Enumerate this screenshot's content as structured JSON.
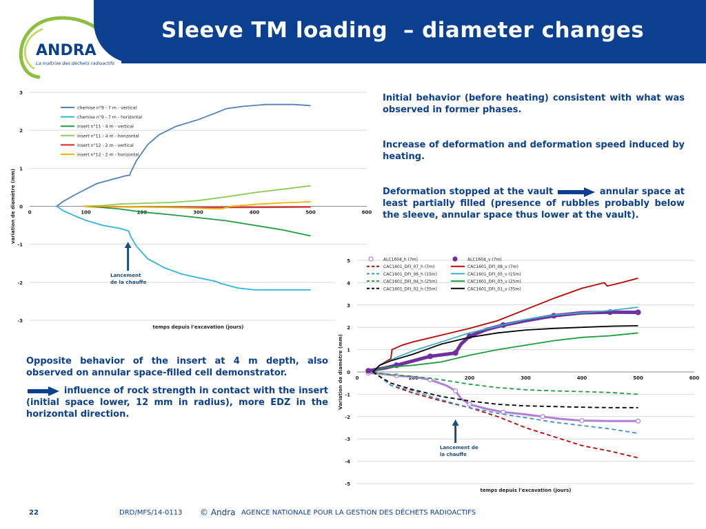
{
  "slide": {
    "title": "Sleeve TM loading  – diameter changes",
    "logo": {
      "brand": "ANDRA",
      "tagline": "La maîtrise des déchets radioactifs"
    },
    "paragraphs": {
      "p1": "Initial behavior (before heating) consistent with what was observed in former phases.",
      "p2": "Increase of deformation and deformation speed induced by heating.",
      "p3_a": "Deformation stopped at the vault",
      "p3_b": "annular space at least partially filled (presence of rubbles probably below the sleeve, annular space thus lower at the vault).",
      "p4": "Opposite behavior of the insert at 4 m depth, also observed on annular space-filled cell demonstrator.",
      "p5": "influence of rock strength in contact with the insert (initial space lower, 12 mm in radius), more EDZ in the horizontal direction."
    },
    "footer": {
      "page": "22",
      "ref": "DRD/MFS/14-0113",
      "copyright": "© Andra",
      "agency": "AGENCE NATIONALE POUR LA GESTION DES DÉCHETS RADIOACTIFS"
    },
    "colors": {
      "brand_blue": "#0b3f8f",
      "logo_green": "#8cbf3f"
    }
  },
  "chart_data": [
    {
      "type": "line",
      "xlabel": "temps depuis l'excavation (jours)",
      "ylabel": "variation de diamètre (mm)",
      "xlim": [
        0,
        600
      ],
      "ylim": [
        -3,
        3
      ],
      "xticks": [
        "0",
        "100",
        "200",
        "300",
        "400",
        "500",
        "600"
      ],
      "yticks": [
        "3",
        "2",
        "1",
        "0",
        "-1",
        "-2",
        "-3"
      ],
      "legend_position": "top-left",
      "annotation": {
        "line1": "Lancement",
        "line2": "de la chauffe",
        "x": 175
      },
      "series": [
        {
          "name": "chemise n°9 - 7 m - vertical",
          "color": "#4f81bd",
          "points": [
            [
              48,
              0
            ],
            [
              60,
              0.13
            ],
            [
              80,
              0.3
            ],
            [
              100,
              0.45
            ],
            [
              120,
              0.6
            ],
            [
              150,
              0.72
            ],
            [
              170,
              0.8
            ],
            [
              178,
              0.82
            ],
            [
              180,
              0.9
            ],
            [
              190,
              1.2
            ],
            [
              210,
              1.62
            ],
            [
              230,
              1.88
            ],
            [
              260,
              2.1
            ],
            [
              300,
              2.28
            ],
            [
              330,
              2.45
            ],
            [
              350,
              2.57
            ],
            [
              380,
              2.63
            ],
            [
              420,
              2.68
            ],
            [
              470,
              2.68
            ],
            [
              500,
              2.65
            ]
          ]
        },
        {
          "name": "chemise n°9 - 7 m - horizontal",
          "color": "#2db3e6",
          "points": [
            [
              48,
              0
            ],
            [
              60,
              -0.12
            ],
            [
              80,
              -0.25
            ],
            [
              100,
              -0.37
            ],
            [
              130,
              -0.5
            ],
            [
              160,
              -0.58
            ],
            [
              176,
              -0.65
            ],
            [
              180,
              -0.8
            ],
            [
              190,
              -1.05
            ],
            [
              210,
              -1.38
            ],
            [
              240,
              -1.62
            ],
            [
              270,
              -1.78
            ],
            [
              300,
              -1.88
            ],
            [
              330,
              -1.97
            ],
            [
              340,
              -2.03
            ],
            [
              370,
              -2.15
            ],
            [
              400,
              -2.2
            ],
            [
              450,
              -2.2
            ],
            [
              500,
              -2.2
            ]
          ]
        },
        {
          "name": "insert n°11 - 4 m - vertical",
          "color": "#1a9e3e",
          "points": [
            [
              95,
              0
            ],
            [
              120,
              -0.02
            ],
            [
              160,
              -0.07
            ],
            [
              200,
              -0.15
            ],
            [
              250,
              -0.22
            ],
            [
              300,
              -0.3
            ],
            [
              350,
              -0.38
            ],
            [
              400,
              -0.5
            ],
            [
              450,
              -0.62
            ],
            [
              500,
              -0.78
            ]
          ]
        },
        {
          "name": "insert n°11 - 4 m - horizontal",
          "color": "#8ccc52",
          "points": [
            [
              95,
              0
            ],
            [
              130,
              0.02
            ],
            [
              160,
              0.06
            ],
            [
              200,
              0.08
            ],
            [
              250,
              0.1
            ],
            [
              300,
              0.15
            ],
            [
              350,
              0.25
            ],
            [
              400,
              0.36
            ],
            [
              450,
              0.45
            ],
            [
              500,
              0.54
            ]
          ]
        },
        {
          "name": "insert n°12 - 2 m - vertical",
          "color": "#e02020",
          "points": [
            [
              95,
              0
            ],
            [
              200,
              -0.02
            ],
            [
              300,
              -0.03
            ],
            [
              400,
              -0.03
            ],
            [
              500,
              -0.02
            ]
          ]
        },
        {
          "name": "insert n°12 - 2 m - horizontal",
          "color": "#f0b400",
          "points": [
            [
              95,
              0
            ],
            [
              150,
              0
            ],
            [
              200,
              -0.02
            ],
            [
              250,
              -0.03
            ],
            [
              300,
              -0.05
            ],
            [
              340,
              -0.07
            ],
            [
              360,
              0
            ],
            [
              400,
              0.05
            ],
            [
              450,
              0.09
            ],
            [
              500,
              0.12
            ]
          ]
        }
      ]
    },
    {
      "type": "line",
      "xlabel": "temps depuis l'excavation (jours)",
      "ylabel": "Variation de diamètre (mm)",
      "xlim": [
        0,
        600
      ],
      "ylim": [
        -5,
        5
      ],
      "xticks": [
        "0",
        "100",
        "200",
        "300",
        "400",
        "500",
        "600"
      ],
      "yticks": [
        "5",
        "4",
        "3",
        "2",
        "1",
        "0",
        "-1",
        "-2",
        "-3",
        "-4",
        "-5"
      ],
      "legend_position": "top-left",
      "annotation": {
        "line1": "Lancement de",
        "line2": "la chauffe",
        "x": 175
      },
      "series": [
        {
          "name": "ALC1604_h (7m)",
          "color": "#b27fd6",
          "style": "open-circle",
          "points": [
            [
              20,
              -0.05
            ],
            [
              50,
              -0.1
            ],
            [
              70,
              -0.17
            ],
            [
              100,
              -0.22
            ],
            [
              130,
              -0.35
            ],
            [
              160,
              -0.62
            ],
            [
              175,
              -0.85
            ],
            [
              185,
              -1.2
            ],
            [
              200,
              -1.45
            ],
            [
              230,
              -1.65
            ],
            [
              260,
              -1.8
            ],
            [
              300,
              -1.9
            ],
            [
              330,
              -2.0
            ],
            [
              360,
              -2.1
            ],
            [
              400,
              -2.18
            ],
            [
              450,
              -2.2
            ],
            [
              500,
              -2.2
            ]
          ]
        },
        {
          "name": "ALC1604_v (7m)",
          "color": "#7030a0",
          "style": "filled-circle",
          "points": [
            [
              20,
              0.05
            ],
            [
              50,
              0.18
            ],
            [
              70,
              0.3
            ],
            [
              100,
              0.5
            ],
            [
              130,
              0.7
            ],
            [
              160,
              0.8
            ],
            [
              175,
              0.85
            ],
            [
              185,
              1.25
            ],
            [
              200,
              1.6
            ],
            [
              230,
              1.9
            ],
            [
              260,
              2.1
            ],
            [
              300,
              2.3
            ],
            [
              350,
              2.52
            ],
            [
              400,
              2.65
            ],
            [
              450,
              2.68
            ],
            [
              500,
              2.67
            ]
          ]
        },
        {
          "name": "CAC1601_DFI_07_h (7m)",
          "color": "#c00000",
          "style": "dash",
          "points": [
            [
              28,
              0
            ],
            [
              40,
              -0.2
            ],
            [
              60,
              -0.6
            ],
            [
              100,
              -0.95
            ],
            [
              150,
              -1.3
            ],
            [
              200,
              -1.6
            ],
            [
              250,
              -2.0
            ],
            [
              300,
              -2.5
            ],
            [
              350,
              -2.9
            ],
            [
              400,
              -3.3
            ],
            [
              450,
              -3.55
            ],
            [
              500,
              -3.85
            ]
          ]
        },
        {
          "name": "CAC1601_DFI_08_v (7m)",
          "color": "#c00000",
          "style": "solid",
          "points": [
            [
              28,
              0
            ],
            [
              40,
              0.3
            ],
            [
              60,
              0.6
            ],
            [
              62,
              1.0
            ],
            [
              80,
              1.2
            ],
            [
              100,
              1.35
            ],
            [
              150,
              1.65
            ],
            [
              200,
              1.95
            ],
            [
              250,
              2.3
            ],
            [
              300,
              2.8
            ],
            [
              350,
              3.3
            ],
            [
              400,
              3.75
            ],
            [
              440,
              4.0
            ],
            [
              445,
              3.85
            ],
            [
              470,
              4.0
            ],
            [
              500,
              4.2
            ]
          ]
        },
        {
          "name": "CAC1601_DFI_06_h (15m)",
          "color": "#3a92c8",
          "style": "dash",
          "points": [
            [
              28,
              0
            ],
            [
              40,
              -0.2
            ],
            [
              60,
              -0.6
            ],
            [
              100,
              -0.85
            ],
            [
              150,
              -1.25
            ],
            [
              200,
              -1.6
            ],
            [
              250,
              -1.85
            ],
            [
              300,
              -2.05
            ],
            [
              350,
              -2.25
            ],
            [
              400,
              -2.4
            ],
            [
              450,
              -2.55
            ],
            [
              500,
              -2.75
            ]
          ]
        },
        {
          "name": "CAC1601_DFI_05_v (15m)",
          "color": "#3ab0c8",
          "style": "solid",
          "points": [
            [
              28,
              0
            ],
            [
              40,
              0.3
            ],
            [
              70,
              0.65
            ],
            [
              100,
              0.95
            ],
            [
              150,
              1.35
            ],
            [
              200,
              1.75
            ],
            [
              250,
              2.05
            ],
            [
              300,
              2.35
            ],
            [
              350,
              2.55
            ],
            [
              400,
              2.65
            ],
            [
              450,
              2.75
            ],
            [
              500,
              2.9
            ]
          ]
        },
        {
          "name": "CAC1601_DFI_04_h (25m)",
          "color": "#1a9e3e",
          "style": "dash",
          "points": [
            [
              28,
              0
            ],
            [
              50,
              -0.1
            ],
            [
              100,
              -0.2
            ],
            [
              150,
              -0.35
            ],
            [
              200,
              -0.55
            ],
            [
              250,
              -0.7
            ],
            [
              300,
              -0.8
            ],
            [
              350,
              -0.85
            ],
            [
              400,
              -0.88
            ],
            [
              450,
              -0.92
            ],
            [
              500,
              -1.0
            ]
          ]
        },
        {
          "name": "CAC1601_DFI_03_v (25m)",
          "color": "#1a9e3e",
          "style": "solid",
          "points": [
            [
              28,
              0
            ],
            [
              50,
              0.2
            ],
            [
              100,
              0.3
            ],
            [
              150,
              0.45
            ],
            [
              200,
              0.75
            ],
            [
              250,
              1.0
            ],
            [
              300,
              1.2
            ],
            [
              350,
              1.4
            ],
            [
              400,
              1.55
            ],
            [
              450,
              1.62
            ],
            [
              500,
              1.75
            ]
          ]
        },
        {
          "name": "CAC1601_DFI_02_h (35m)",
          "color": "#000000",
          "style": "dash",
          "points": [
            [
              28,
              0
            ],
            [
              40,
              -0.2
            ],
            [
              60,
              -0.5
            ],
            [
              100,
              -0.8
            ],
            [
              150,
              -1.1
            ],
            [
              200,
              -1.3
            ],
            [
              250,
              -1.45
            ],
            [
              300,
              -1.52
            ],
            [
              350,
              -1.55
            ],
            [
              400,
              -1.58
            ],
            [
              450,
              -1.6
            ],
            [
              500,
              -1.6
            ]
          ]
        },
        {
          "name": "CAC1601_DFI_01_v (35m)",
          "color": "#000000",
          "style": "solid",
          "points": [
            [
              28,
              0
            ],
            [
              40,
              0.3
            ],
            [
              60,
              0.5
            ],
            [
              100,
              0.8
            ],
            [
              150,
              1.25
            ],
            [
              200,
              1.55
            ],
            [
              250,
              1.75
            ],
            [
              300,
              1.88
            ],
            [
              350,
              1.95
            ],
            [
              400,
              2.0
            ],
            [
              450,
              2.05
            ],
            [
              500,
              2.07
            ]
          ]
        }
      ]
    }
  ]
}
